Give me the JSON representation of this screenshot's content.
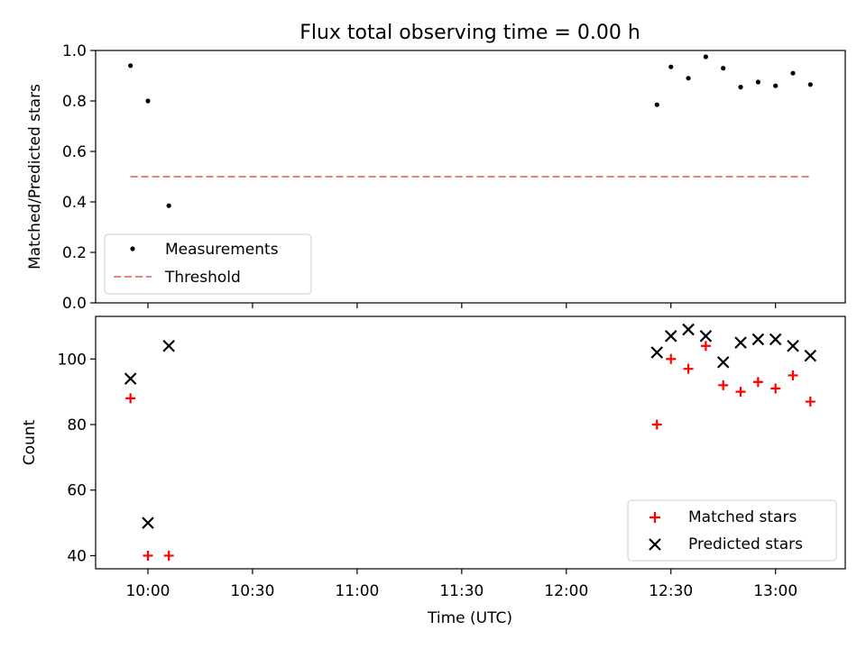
{
  "chart_data": {
    "title": "Flux total observing time = 0.00 h",
    "xlabel": "Time (UTC)",
    "xticks": [
      "10:00",
      "10:30",
      "11:00",
      "11:30",
      "12:00",
      "12:30",
      "13:00"
    ],
    "xlim": [
      "09:45",
      "13:20"
    ],
    "panels": [
      {
        "type": "scatter",
        "ylabel": "Matched/Predicted stars",
        "ylim": [
          0,
          1
        ],
        "yticks": [
          "0.0",
          "0.2",
          "0.4",
          "0.6",
          "0.8",
          "1.0"
        ],
        "legend_position": "lower-left",
        "series": [
          {
            "name": "Measurements",
            "marker": "dot",
            "color": "#000000",
            "x": [
              "09:55",
              "10:00",
              "10:06",
              "12:26",
              "12:30",
              "12:35",
              "12:40",
              "12:45",
              "12:50",
              "12:55",
              "13:00",
              "13:05",
              "13:10"
            ],
            "y": [
              0.94,
              0.8,
              0.385,
              0.785,
              0.935,
              0.89,
              0.975,
              0.93,
              0.855,
              0.875,
              0.86,
              0.91,
              0.865
            ]
          },
          {
            "name": "Threshold",
            "marker": "dashed-line",
            "color": "#f08080",
            "x": [
              "09:55",
              "13:10"
            ],
            "y": [
              0.5,
              0.5
            ]
          }
        ]
      },
      {
        "type": "scatter",
        "ylabel": "Count",
        "ylim": [
          36,
          113
        ],
        "yticks": [
          "40",
          "60",
          "80",
          "100"
        ],
        "legend_position": "lower-right",
        "series": [
          {
            "name": "Matched stars",
            "marker": "plus",
            "color": "#ff0000",
            "x": [
              "09:55",
              "10:00",
              "10:06",
              "12:26",
              "12:30",
              "12:35",
              "12:40",
              "12:45",
              "12:50",
              "12:55",
              "13:00",
              "13:05",
              "13:10"
            ],
            "y": [
              88,
              40,
              40,
              80,
              100,
              97,
              104,
              92,
              90,
              93,
              91,
              95,
              87
            ]
          },
          {
            "name": "Predicted stars",
            "marker": "x",
            "color": "#000000",
            "x": [
              "09:55",
              "10:00",
              "10:06",
              "12:26",
              "12:30",
              "12:35",
              "12:40",
              "12:45",
              "12:50",
              "12:55",
              "13:00",
              "13:05",
              "13:10"
            ],
            "y": [
              94,
              50,
              104,
              102,
              107,
              109,
              107,
              99,
              105,
              106,
              106,
              104,
              101
            ]
          }
        ]
      }
    ]
  }
}
